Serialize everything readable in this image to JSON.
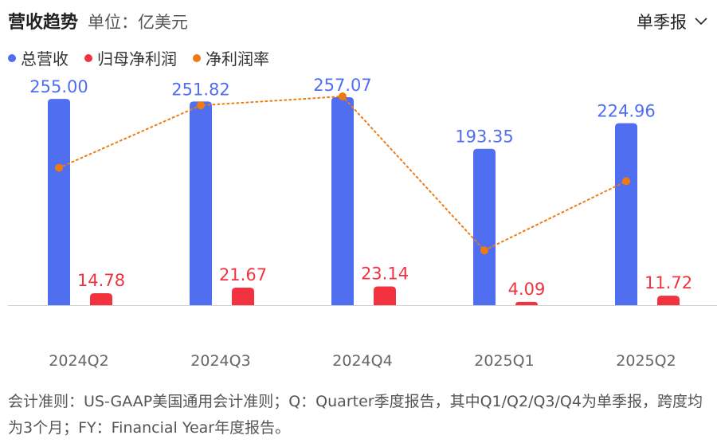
{
  "header": {
    "title": "营收趋势",
    "unit": "单位：亿美元"
  },
  "period_selector": {
    "label": "单季报"
  },
  "colors": {
    "revenue": "#4f6ef0",
    "net_income": "#f2333f",
    "margin": "#f07a12",
    "axis": "#d0d0d0",
    "tick": "#666666"
  },
  "legend": [
    {
      "label": "总营收",
      "color": "#4f6ef0"
    },
    {
      "label": "归母净利润",
      "color": "#f2333f"
    },
    {
      "label": "净利润率",
      "color": "#f07a12"
    }
  ],
  "chart_data": {
    "type": "bar",
    "categories": [
      "2024Q2",
      "2024Q3",
      "2024Q4",
      "2025Q1",
      "2025Q2"
    ],
    "series": [
      {
        "name": "总营收",
        "type": "bar",
        "values": [
          255.0,
          251.82,
          257.07,
          193.35,
          224.96
        ],
        "labels": [
          "255.00",
          "251.82",
          "257.07",
          "193.35",
          "224.96"
        ]
      },
      {
        "name": "归母净利润",
        "type": "bar",
        "values": [
          14.78,
          21.67,
          23.14,
          4.09,
          11.72
        ],
        "labels": [
          "14.78",
          "21.67",
          "23.14",
          "4.09",
          "11.72"
        ]
      },
      {
        "name": "净利润率",
        "type": "line",
        "values": [
          5.8,
          8.6,
          9.0,
          2.1,
          5.2
        ]
      }
    ],
    "ylim": [
      0,
      257.07
    ],
    "margin_ylim": [
      0,
      9.0
    ],
    "grid": false,
    "legend_position": "top-left"
  },
  "footnote": "会计准则：US-GAAP美国通用会计准则；Q：Quarter季度报告，其中Q1/Q2/Q3/Q4为单季报，跨度均为3个月；FY：Financial Year年度报告。"
}
